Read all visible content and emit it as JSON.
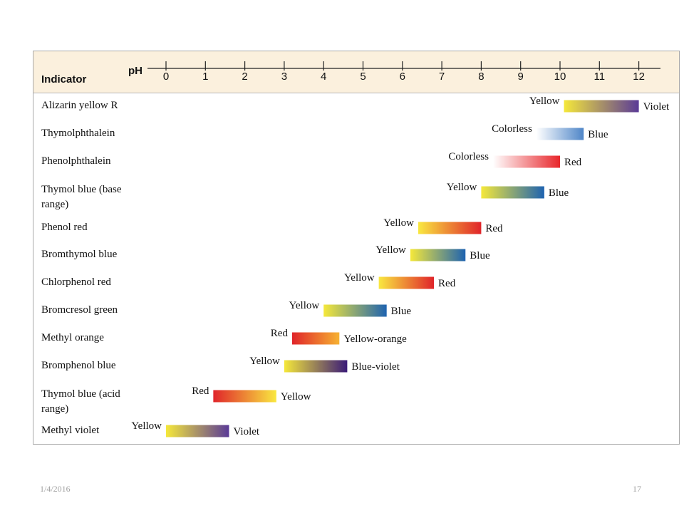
{
  "chart_data": {
    "type": "bar",
    "orientation": "horizontal-range",
    "header_left": "Indicator",
    "axis_label": "pH",
    "x_ticks": [
      "0",
      "1",
      "2",
      "3",
      "4",
      "5",
      "6",
      "7",
      "8",
      "9",
      "10",
      "11",
      "12"
    ],
    "xlim": [
      0,
      12
    ],
    "grid": false,
    "rows": [
      {
        "name": "Alizarin yellow R",
        "start": 10.1,
        "end": 12.0,
        "low_label": "Yellow",
        "high_label": "Violet",
        "low_color": "#f5e83a",
        "high_color": "#5a3a97"
      },
      {
        "name": "Thymolphthalein",
        "start": 9.4,
        "end": 10.6,
        "low_label": "Colorless",
        "high_label": "Blue",
        "low_color": "#ffffff",
        "high_color": "#4f86c8"
      },
      {
        "name": "Phenolphthalein",
        "start": 8.3,
        "end": 10.0,
        "low_label": "Colorless",
        "high_label": "Red",
        "low_color": "#ffffff",
        "high_color": "#e8262b"
      },
      {
        "name": "Thymol blue (base range)",
        "start": 8.0,
        "end": 9.6,
        "low_label": "Yellow",
        "high_label": "Blue",
        "low_color": "#f5e83a",
        "high_color": "#1e63b0"
      },
      {
        "name": "Phenol red",
        "start": 6.4,
        "end": 8.0,
        "low_label": "Yellow",
        "high_label": "Red",
        "low_color": "#f9e840",
        "high_color": "#e0242a"
      },
      {
        "name": "Bromthymol blue",
        "start": 6.2,
        "end": 7.6,
        "low_label": "Yellow",
        "high_label": "Blue",
        "low_color": "#f5e83a",
        "high_color": "#1e63b0"
      },
      {
        "name": "Chlorphenol red",
        "start": 5.4,
        "end": 6.8,
        "low_label": "Yellow",
        "high_label": "Red",
        "low_color": "#f9e840",
        "high_color": "#e0242a"
      },
      {
        "name": "Bromcresol green",
        "start": 4.0,
        "end": 5.6,
        "low_label": "Yellow",
        "high_label": "Blue",
        "low_color": "#f5e83a",
        "high_color": "#1e63b0"
      },
      {
        "name": "Methyl orange",
        "start": 3.2,
        "end": 4.4,
        "low_label": "Red",
        "high_label": "Yellow-orange",
        "low_color": "#e0242a",
        "high_color": "#f6b232"
      },
      {
        "name": "Bromphenol blue",
        "start": 3.0,
        "end": 4.6,
        "low_label": "Yellow",
        "high_label": "Blue-violet",
        "low_color": "#f5e83a",
        "high_color": "#3a1a78"
      },
      {
        "name": "Thymol blue (acid range)",
        "start": 1.2,
        "end": 2.8,
        "low_label": "Red",
        "high_label": "Yellow",
        "low_color": "#e0242a",
        "high_color": "#f9e840"
      },
      {
        "name": "Methyl violet",
        "start": 0.0,
        "end": 1.6,
        "low_label": "Yellow",
        "high_label": "Violet",
        "low_color": "#f5e83a",
        "high_color": "#5a3a97"
      }
    ]
  },
  "footer": {
    "date": "1/4/2016",
    "page": "17"
  },
  "colors": {
    "header_background": "#fbf0dd",
    "border": "#a9a9a9"
  }
}
